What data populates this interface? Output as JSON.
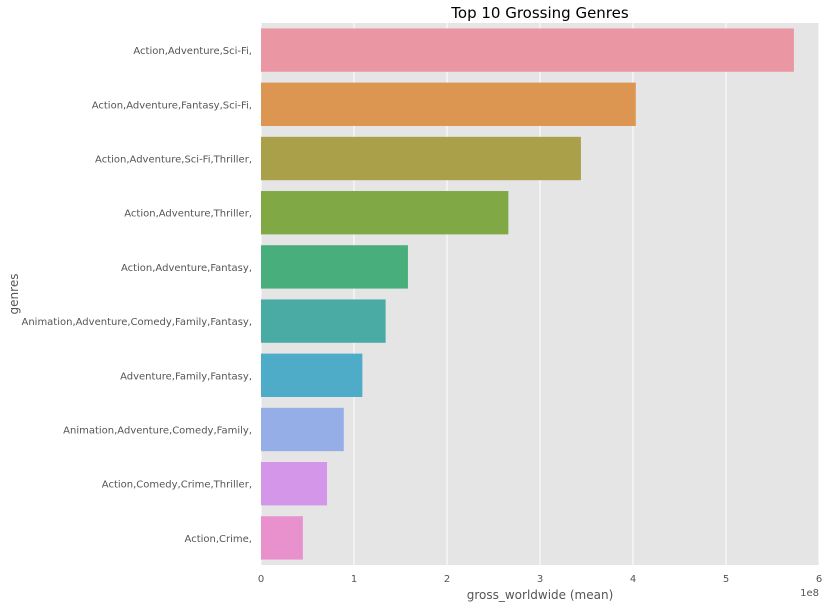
{
  "chart_data": {
    "type": "bar",
    "orientation": "horizontal",
    "title": "Top 10 Grossing Genres",
    "xlabel": "gross_worldwide (mean)",
    "ylabel": "genres",
    "x_offset_label": "1e8",
    "xlim": [
      0,
      6
    ],
    "xticks": [
      "0",
      "1",
      "2",
      "3",
      "4",
      "5",
      "6"
    ],
    "grid": true,
    "legend": "none",
    "categories": [
      "Action,Adventure,Sci-Fi,",
      "Action,Adventure,Fantasy,Sci-Fi,",
      "Action,Adventure,Sci-Fi,Thriller,",
      "Action,Adventure,Thriller,",
      "Action,Adventure,Fantasy,",
      "Animation,Adventure,Comedy,Family,Fantasy,",
      "Adventure,Family,Fantasy,",
      "Animation,Adventure,Comedy,Family,",
      "Action,Comedy,Crime,Thriller,",
      "Action,Crime,"
    ],
    "values": [
      5.73,
      4.03,
      3.44,
      2.66,
      1.58,
      1.34,
      1.09,
      0.89,
      0.71,
      0.45
    ],
    "colors": [
      "#ea96a3",
      "#dd9651",
      "#aba04a",
      "#80a945",
      "#48ae7b",
      "#4aaba5",
      "#4eacc9",
      "#96aee8",
      "#d496e8",
      "#e991cc"
    ],
    "background": "#e5e5e5",
    "grid_color": "#ffffff"
  }
}
